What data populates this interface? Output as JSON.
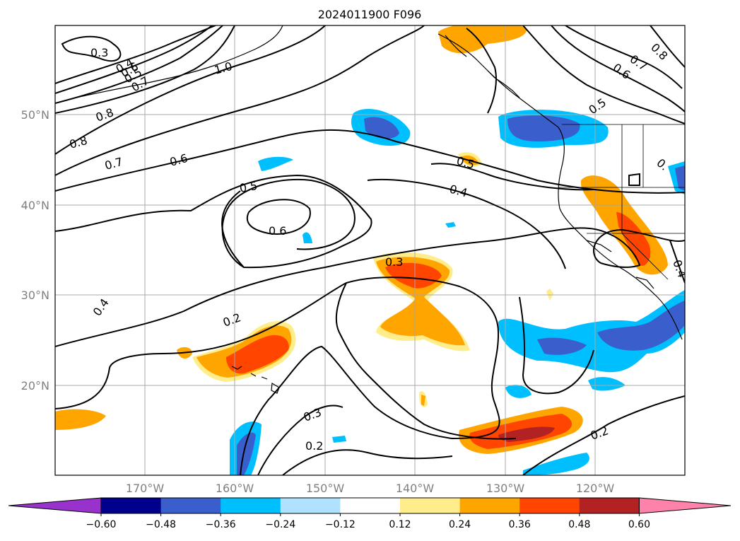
{
  "title": "2024011900 F096",
  "lat_labels": [
    "50°N",
    "40°N",
    "30°N",
    "20°N"
  ],
  "lon_labels": [
    "170°W",
    "160°W",
    "150°W",
    "140°W",
    "130°W",
    "120°W"
  ],
  "colorbar": {
    "colors": [
      "#9932cc",
      "#00008b",
      "#3a5fcd",
      "#00bfff",
      "#b0e2ff",
      "#ffffff",
      "#ffec8b",
      "#ffa500",
      "#ff4500",
      "#b22222",
      "#ff82ab"
    ],
    "tick_labels": [
      "−0.60",
      "−0.48",
      "−0.36",
      "−0.24",
      "−0.12",
      "0.12",
      "0.24",
      "0.36",
      "0.48",
      "0.60"
    ]
  },
  "contour_labels": [
    {
      "text": "0.3"
    },
    {
      "text": "0.4"
    },
    {
      "text": "0.5"
    },
    {
      "text": "0.6"
    },
    {
      "text": "0.7"
    },
    {
      "text": "1.0"
    },
    {
      "text": "0.8"
    },
    {
      "text": "0.8"
    },
    {
      "text": "0.7"
    },
    {
      "text": "0.6"
    },
    {
      "text": "0.5"
    },
    {
      "text": "0.6"
    },
    {
      "text": "0.5"
    },
    {
      "text": "0.4"
    },
    {
      "text": "0.3"
    },
    {
      "text": "0.2"
    },
    {
      "text": "0.4"
    },
    {
      "text": "0.3"
    },
    {
      "text": "0.2"
    },
    {
      "text": "0.2"
    },
    {
      "text": "0.5"
    },
    {
      "text": "0.7"
    },
    {
      "text": "0.6"
    },
    {
      "text": "0.8"
    },
    {
      "text": "0.4"
    },
    {
      "text": "0."
    }
  ]
}
